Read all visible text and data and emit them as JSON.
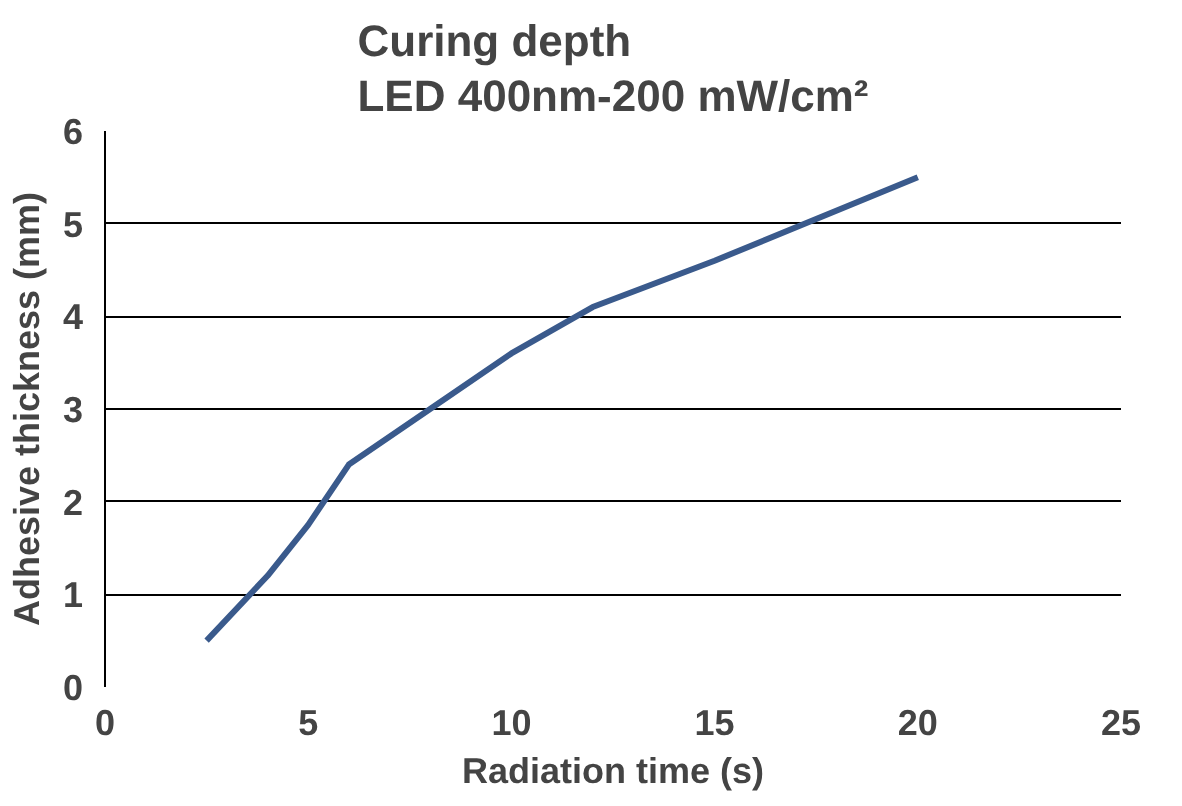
{
  "chart_data": {
    "type": "line",
    "title": "Curing depth\nLED 400nm-200 mW/cm²",
    "xlabel": "Radiation time (s)",
    "ylabel": "Adhesive thickness (mm)",
    "series": [
      {
        "color": "#3a5a8c",
        "x": [
          2.5,
          4,
          5,
          6,
          8,
          10,
          12,
          15,
          20
        ],
        "values": [
          0.5,
          1.2,
          1.75,
          2.4,
          3.0,
          3.6,
          4.1,
          4.6,
          5.5
        ]
      }
    ],
    "xlim": [
      0,
      25
    ],
    "xticks": [
      0,
      5,
      10,
      15,
      20,
      25
    ],
    "ylim": [
      0,
      6
    ],
    "yticks": [
      0,
      1,
      2,
      3,
      4,
      5,
      6
    ],
    "grid": "y",
    "marker": "none",
    "line_style": "solid"
  }
}
